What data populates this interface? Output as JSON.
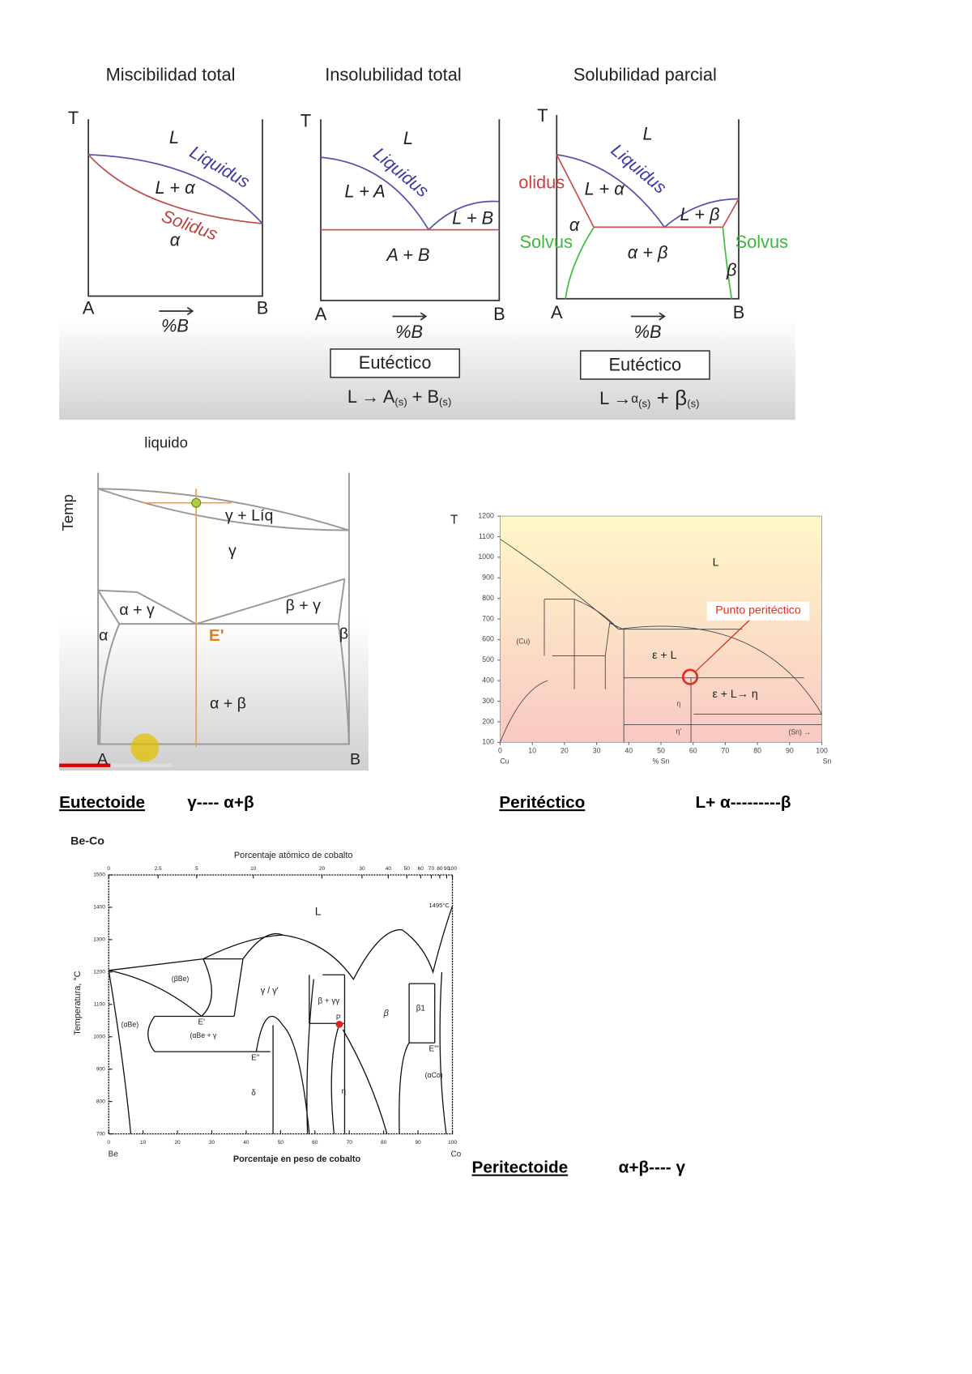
{
  "row1": {
    "miscibility": {
      "title": "Miscibilidad total",
      "T": "T",
      "L": "L",
      "liquidus": "Liquidus",
      "l_alpha": "L + α",
      "solidus": "Solidus",
      "alpha": "α",
      "A": "A",
      "B": "B",
      "axis": "%B"
    },
    "insolubility": {
      "title": "Insolubilidad total",
      "T": "T",
      "L": "L",
      "liquidus": "Liquidus",
      "l_a": "L + A",
      "l_b": "L + B",
      "a_b": "A + B",
      "A": "A",
      "B": "B",
      "axis": "%B",
      "box": "Eutéctico",
      "reaction": [
        "L → A",
        "(s)",
        " + B",
        "(s)"
      ]
    },
    "partial": {
      "title": "Solubilidad parcial",
      "T": "T",
      "L": "L",
      "liquidus": "Liquidus",
      "solidus": "olidus",
      "l_alpha": "L + α",
      "alpha": "α",
      "l_beta": "L + β",
      "solvus_left": "Solvus",
      "alpha_beta": "α + β",
      "solvus_right": "Solvus",
      "beta": "β",
      "A": "A",
      "B": "B",
      "axis": "%B",
      "box": "Eutéctico",
      "reaction": [
        "L →",
        "α",
        "(s)",
        " + β",
        "(s)"
      ]
    }
  },
  "eutectoid_figure": {
    "liquid": "liquido",
    "temp": "Temp",
    "gamma_liq": "γ + Líq",
    "gamma": "γ",
    "alpha_gamma": "α + γ",
    "beta_gamma": "β + γ",
    "alpha": "α",
    "beta": "β",
    "point": "E'",
    "alpha_beta": "α + β",
    "A": "A",
    "B": "B"
  },
  "peritectic_figure": {
    "T": "T",
    "yticks": [
      100,
      200,
      300,
      400,
      500,
      600,
      700,
      800,
      900,
      1000,
      1100,
      1200
    ],
    "xticks": [
      0,
      10,
      20,
      30,
      40,
      50,
      60,
      70,
      80,
      90,
      100
    ],
    "x_start": "Cu",
    "x_label": "% Sn",
    "x_end": "Sn",
    "L": "L",
    "callout": "Punto peritéctico",
    "eps_l": "ε + L",
    "reaction": "ε + L→ η",
    "cu": "(Cu)",
    "sn": "(Sn) →",
    "eta": "η",
    "eta2": "η'"
  },
  "captions": {
    "eutectoid": "Eutectoide",
    "eutectoid_reaction": "γ---- α+β",
    "peritectic": "Peritéctico",
    "peritectic_reaction": "L+ α---------β",
    "peritectoid": "Peritectoide",
    "peritectoid_reaction": "α+β---- γ"
  },
  "beco": {
    "title": "Be-Co",
    "top_label": "Porcentaje atómico de cobalto",
    "bottom_label": "Porcentaje en peso de cobalto",
    "y_label": "Temperatura, °C",
    "top_ticks": [
      0,
      2.5,
      5,
      10,
      20,
      30,
      40,
      50,
      60,
      70,
      80,
      90,
      100
    ],
    "xticks": [
      0,
      10,
      20,
      30,
      40,
      50,
      60,
      70,
      80,
      90,
      100
    ],
    "yticks": [
      700,
      800,
      900,
      1000,
      1100,
      1200,
      1300,
      1400,
      1500
    ],
    "be": "Be",
    "co": "Co",
    "L": "L",
    "beta_be": "(βBe)",
    "gamma": "γ / γ'",
    "beta_gamma": "β + γγ",
    "beta": "β",
    "beta1": "β1",
    "alpha_be": "(αBe)",
    "alpha_be_gamma": "(αBe + γ",
    "e1": "E'",
    "e2": "E''",
    "e3": "E'''",
    "p": "P",
    "delta": "δ",
    "eta": "η",
    "alpha_co": "(αCo)",
    "melt": "1495°C"
  }
}
